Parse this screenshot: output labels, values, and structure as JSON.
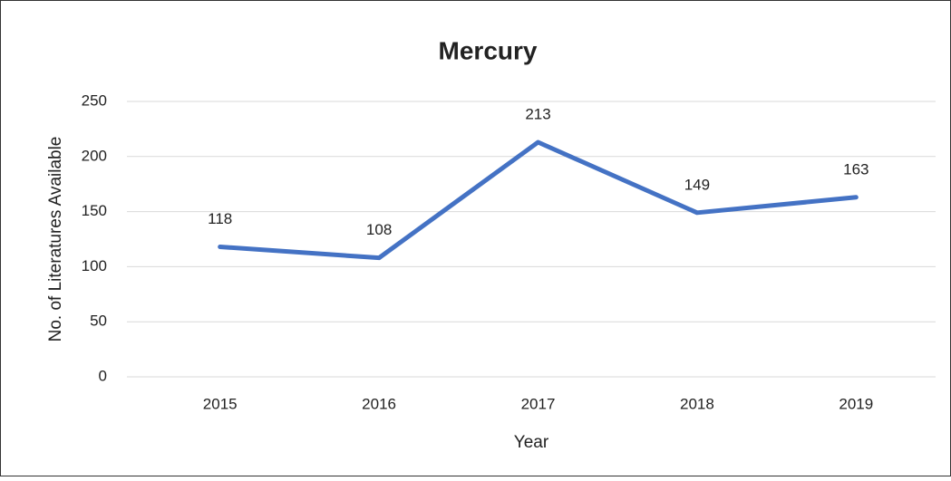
{
  "chart_data": {
    "type": "line",
    "title": "Mercury",
    "x_label": "Year",
    "y_label": "No. of Literatures Available",
    "categories": [
      "2015",
      "2016",
      "2017",
      "2018",
      "2019"
    ],
    "series": [
      {
        "name": "Mercury",
        "color": "#4472c4",
        "values": [
          118,
          108,
          213,
          149,
          163
        ]
      }
    ],
    "ylim": [
      0,
      250
    ],
    "yticks": [
      0,
      50,
      100,
      150,
      200,
      250
    ],
    "grid": true
  }
}
